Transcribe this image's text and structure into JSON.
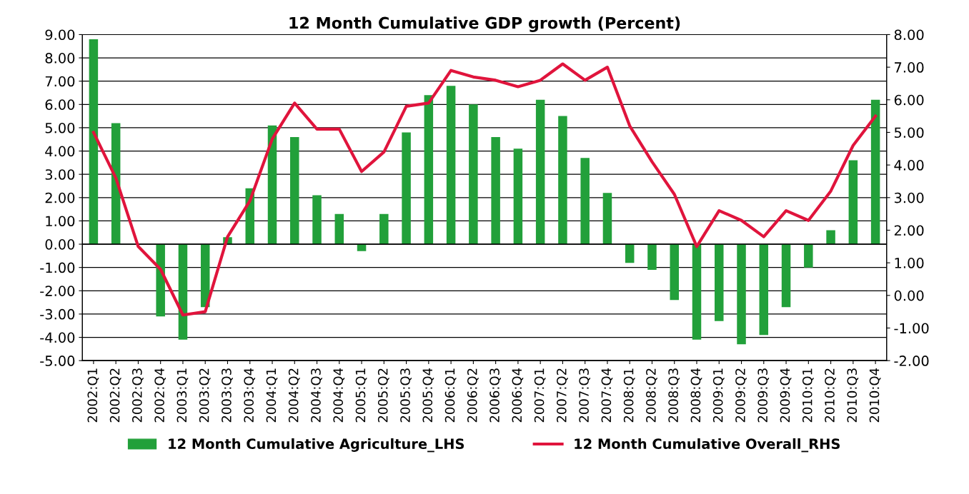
{
  "chart_data": {
    "type": "bar",
    "title": "12 Month Cumulative GDP growth (Percent)",
    "categories": [
      "2002:Q1",
      "2002:Q2",
      "2002:Q3",
      "2002:Q4",
      "2003:Q1",
      "2003:Q2",
      "2003:Q3",
      "2003:Q4",
      "2004:Q1",
      "2004:Q2",
      "2004:Q3",
      "2004:Q4",
      "2005:Q1",
      "2005:Q2",
      "2005:Q3",
      "2005:Q4",
      "2006:Q1",
      "2006:Q2",
      "2006:Q3",
      "2006:Q4",
      "2007:Q1",
      "2007:Q2",
      "2007:Q3",
      "2007:Q4",
      "2008:Q1",
      "2008:Q2",
      "2008:Q3",
      "2008:Q4",
      "2009:Q1",
      "2009:Q2",
      "2009:Q3",
      "2009:Q4",
      "2010:Q1",
      "2010:Q2",
      "2010:Q3",
      "2010:Q4"
    ],
    "series": [
      {
        "name": "12 Month Cumulative Agriculture_LHS",
        "color": "#22a03a",
        "values": [
          8.8,
          5.2,
          0.0,
          -3.1,
          -4.1,
          -2.7,
          0.3,
          2.4,
          5.1,
          4.6,
          2.1,
          1.3,
          -0.3,
          1.3,
          4.8,
          6.4,
          6.8,
          6.0,
          4.6,
          4.1,
          6.2,
          5.5,
          3.7,
          2.2,
          -0.8,
          -1.1,
          -2.4,
          -4.1,
          -3.3,
          -4.3,
          -3.9,
          -2.7,
          -1.0,
          0.6,
          3.6,
          6.2
        ]
      },
      {
        "name": "12 Month Cumulative Overall_RHS",
        "type": "line",
        "axis": "y2",
        "color": "#e0143c",
        "values": [
          5.0,
          3.6,
          1.5,
          0.8,
          -0.6,
          -0.5,
          1.8,
          2.9,
          4.8,
          5.9,
          5.1,
          5.1,
          3.8,
          4.4,
          5.8,
          5.9,
          6.9,
          6.7,
          6.6,
          6.4,
          6.6,
          7.1,
          6.6,
          7.0,
          5.2,
          4.1,
          3.1,
          1.5,
          2.6,
          2.3,
          1.8,
          2.6,
          2.3,
          3.2,
          4.6,
          5.5
        ]
      }
    ],
    "ylim": [
      -5,
      9
    ],
    "yticks": [
      {
        "value": -5,
        "label": "-5.00"
      },
      {
        "value": -4,
        "label": "-4.00"
      },
      {
        "value": -3,
        "label": "-3.00"
      },
      {
        "value": -2,
        "label": "-2.00"
      },
      {
        "value": -1,
        "label": "-1.00"
      },
      {
        "value": 0,
        "label": "0.00"
      },
      {
        "value": 1,
        "label": "1.00"
      },
      {
        "value": 2,
        "label": "2.00"
      },
      {
        "value": 3,
        "label": "3.00"
      },
      {
        "value": 4,
        "label": "4.00"
      },
      {
        "value": 5,
        "label": "5.00"
      },
      {
        "value": 6,
        "label": "6.00"
      },
      {
        "value": 7,
        "label": "7.00"
      },
      {
        "value": 8,
        "label": "8.00"
      },
      {
        "value": 9,
        "label": "9.00"
      }
    ],
    "y2lim": [
      -2,
      8
    ],
    "y2ticks": [
      {
        "value": -2,
        "label": "-2.00"
      },
      {
        "value": -1,
        "label": "-1.00"
      },
      {
        "value": 0,
        "label": "0.00"
      },
      {
        "value": 1,
        "label": "1.00"
      },
      {
        "value": 2,
        "label": "2.00"
      },
      {
        "value": 3,
        "label": "3.00"
      },
      {
        "value": 4,
        "label": "4.00"
      },
      {
        "value": 5,
        "label": "5.00"
      },
      {
        "value": 6,
        "label": "6.00"
      },
      {
        "value": 7,
        "label": "7.00"
      },
      {
        "value": 8,
        "label": "8.00"
      }
    ],
    "grid": "y",
    "legend": "bottom"
  }
}
